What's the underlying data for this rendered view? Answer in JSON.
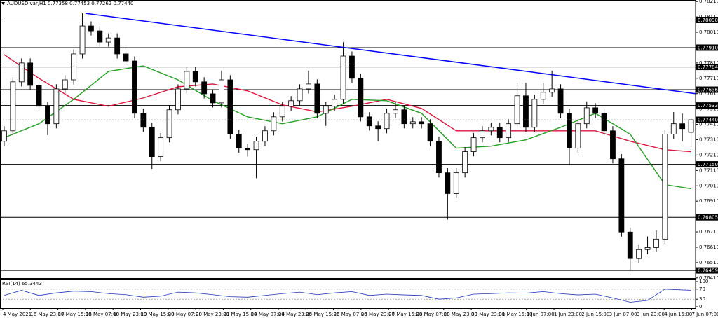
{
  "chart_data": {
    "type": "candlestick",
    "title": "AUDUSD.var,H1  0.77358 0.77453 0.77262 0.77440",
    "xlim": [
      -0.48,
      79.52
    ],
    "ylim": [
      0.764,
      0.7822
    ],
    "up_color": "#ffffff",
    "down_color": "#000000",
    "candles": {
      "open": [
        0.773,
        0.77368,
        0.77687,
        0.7781,
        0.77664,
        0.77528,
        0.77414,
        0.77641,
        0.777,
        0.77869,
        0.78051,
        0.78019,
        0.77946,
        0.77973,
        0.77869,
        0.77823,
        0.77482,
        0.77391,
        0.772,
        0.77323,
        0.77505,
        0.77641,
        0.77755,
        0.77687,
        0.77609,
        0.7755,
        0.777,
        0.77346,
        0.77255,
        0.77245,
        0.773,
        0.77368,
        0.77459,
        0.77528,
        0.77564,
        0.77641,
        0.77673,
        0.77482,
        0.77528,
        0.77573,
        0.77855,
        0.7771,
        0.77459,
        0.774,
        0.77382,
        0.77482,
        0.77505,
        0.77414,
        0.77427,
        0.77414,
        0.773,
        0.77095,
        0.76959,
        0.77095,
        0.77232,
        0.77323,
        0.77368,
        0.77391,
        0.77323,
        0.77414,
        0.77596,
        0.77391,
        0.77573,
        0.77619,
        0.77641,
        0.77482,
        0.77255,
        0.77414,
        0.77518,
        0.77482,
        0.77368,
        0.77186,
        0.76709,
        0.76536,
        0.76595,
        0.76608,
        0.76663,
        0.77346,
        0.77414,
        0.77358
      ],
      "high": [
        0.77398,
        0.77717,
        0.7784,
        0.7784,
        0.77694,
        0.77558,
        0.77671,
        0.7773,
        0.77899,
        0.78133,
        0.78081,
        0.78049,
        0.78003,
        0.78003,
        0.77899,
        0.77853,
        0.77512,
        0.77421,
        0.77353,
        0.77535,
        0.77671,
        0.77785,
        0.77785,
        0.77717,
        0.77639,
        0.7776,
        0.7773,
        0.77376,
        0.77285,
        0.7733,
        0.77398,
        0.77489,
        0.77558,
        0.77594,
        0.77671,
        0.7776,
        0.77703,
        0.77558,
        0.77603,
        0.77945,
        0.77885,
        0.7774,
        0.77489,
        0.7743,
        0.77512,
        0.7756,
        0.77535,
        0.77457,
        0.77457,
        0.77444,
        0.7733,
        0.77125,
        0.77125,
        0.77262,
        0.77353,
        0.77398,
        0.77421,
        0.77421,
        0.77444,
        0.7768,
        0.7768,
        0.77603,
        0.7768,
        0.7776,
        0.77671,
        0.77512,
        0.77444,
        0.7756,
        0.77548,
        0.77512,
        0.77398,
        0.77216,
        0.76739,
        0.76625,
        0.7668,
        0.7672,
        0.77376,
        0.7749,
        0.7748,
        0.77453
      ],
      "low": [
        0.7727,
        0.77338,
        0.77657,
        0.77634,
        0.77498,
        0.7734,
        0.77384,
        0.77611,
        0.7767,
        0.77839,
        0.77989,
        0.77916,
        0.77916,
        0.77839,
        0.77793,
        0.77452,
        0.77361,
        0.7712,
        0.7717,
        0.77293,
        0.77475,
        0.77611,
        0.77657,
        0.77579,
        0.7752,
        0.7752,
        0.77316,
        0.77225,
        0.772,
        0.7706,
        0.7727,
        0.77338,
        0.77429,
        0.77498,
        0.77534,
        0.77611,
        0.77452,
        0.774,
        0.77498,
        0.77543,
        0.7768,
        0.77429,
        0.7737,
        0.773,
        0.77352,
        0.77452,
        0.77384,
        0.77384,
        0.77384,
        0.7727,
        0.77065,
        0.7679,
        0.76929,
        0.77065,
        0.77202,
        0.77293,
        0.77338,
        0.77293,
        0.77293,
        0.77384,
        0.77361,
        0.77361,
        0.77543,
        0.77589,
        0.77452,
        0.7715,
        0.77225,
        0.77384,
        0.77452,
        0.77338,
        0.77156,
        0.76679,
        0.76459,
        0.76506,
        0.76565,
        0.76578,
        0.76633,
        0.77316,
        0.773,
        0.77262
      ],
      "close": [
        0.77368,
        0.77687,
        0.7781,
        0.77664,
        0.77528,
        0.77414,
        0.77641,
        0.777,
        0.77869,
        0.78051,
        0.78019,
        0.77946,
        0.77973,
        0.77869,
        0.77823,
        0.77482,
        0.77391,
        0.772,
        0.77323,
        0.77505,
        0.77641,
        0.77755,
        0.77687,
        0.77609,
        0.7755,
        0.777,
        0.77346,
        0.77255,
        0.77245,
        0.773,
        0.77368,
        0.77459,
        0.77528,
        0.77564,
        0.77641,
        0.77673,
        0.77482,
        0.77528,
        0.77573,
        0.77855,
        0.7771,
        0.77459,
        0.774,
        0.77382,
        0.77482,
        0.77505,
        0.77414,
        0.77427,
        0.77414,
        0.773,
        0.77095,
        0.76959,
        0.77095,
        0.77232,
        0.77323,
        0.77368,
        0.77391,
        0.77323,
        0.77414,
        0.77596,
        0.77391,
        0.77573,
        0.77619,
        0.77641,
        0.77482,
        0.77255,
        0.77414,
        0.77518,
        0.77482,
        0.77368,
        0.77186,
        0.76709,
        0.76536,
        0.76595,
        0.76608,
        0.76663,
        0.77346,
        0.77414,
        0.77382,
        0.7744
      ]
    },
    "indicators": [
      {
        "color": "#dc143c",
        "x": [
          0,
          4,
          8,
          12,
          16,
          20,
          24,
          28,
          32,
          36,
          40,
          44,
          48,
          52,
          56,
          60,
          64,
          68,
          72,
          76,
          79
        ],
        "values": [
          0.77864,
          0.7771,
          0.77573,
          0.77528,
          0.77582,
          0.77655,
          0.77673,
          0.77628,
          0.77537,
          0.77491,
          0.77528,
          0.77573,
          0.77514,
          0.77368,
          0.77368,
          0.77368,
          0.77368,
          0.77368,
          0.773,
          0.77245,
          0.77232
        ]
      },
      {
        "color": "#22a022",
        "x": [
          0,
          4,
          8,
          12,
          16,
          20,
          24,
          28,
          32,
          36,
          40,
          44,
          48,
          52,
          56,
          60,
          64,
          68,
          72,
          76,
          79
        ],
        "values": [
          0.77323,
          0.77414,
          0.77573,
          0.77755,
          0.77791,
          0.777,
          0.77564,
          0.77459,
          0.77414,
          0.77459,
          0.77573,
          0.77564,
          0.77482,
          0.77255,
          0.77268,
          0.77309,
          0.77391,
          0.77482,
          0.77346,
          0.77018,
          0.76991
        ]
      }
    ],
    "trendline": {
      "color": "#0000ff",
      "x": [
        9.35,
        79.52
      ],
      "values": [
        0.78133,
        0.7761
      ]
    },
    "levels": [
      {
        "value": 0.7809,
        "label": "0.78090"
      },
      {
        "value": 0.7791,
        "label": "0.77910"
      },
      {
        "value": 0.77784,
        "label": "0.77784"
      },
      {
        "value": 0.77636,
        "label": "0.77636"
      },
      {
        "value": 0.77533,
        "label": "0.77533"
      },
      {
        "value": 0.7715,
        "label": "0.77150"
      },
      {
        "value": 0.76805,
        "label": "0.76805"
      },
      {
        "value": 0.76459,
        "label": "0.76459"
      }
    ],
    "last_price": {
      "value": 0.7744,
      "label": "0.77440"
    },
    "yticks": [
      {
        "value": 0.7821,
        "label": "0.78210"
      },
      {
        "value": 0.7811,
        "label": "0.78110"
      },
      {
        "value": 0.7801,
        "label": "0.78010"
      },
      {
        "value": 0.7781,
        "label": "0.77810"
      },
      {
        "value": 0.7771,
        "label": "0.77710"
      },
      {
        "value": 0.7761,
        "label": "0.77610"
      },
      {
        "value": 0.7751,
        "label": "0.77510"
      },
      {
        "value": 0.7741,
        "label": "0.77410"
      },
      {
        "value": 0.7731,
        "label": "0.77310"
      },
      {
        "value": 0.7721,
        "label": "0.77210"
      },
      {
        "value": 0.7711,
        "label": "0.77110"
      },
      {
        "value": 0.7701,
        "label": "0.77010"
      },
      {
        "value": 0.7691,
        "label": "0.76910"
      },
      {
        "value": 0.7681,
        "label": "0.76810"
      },
      {
        "value": 0.7671,
        "label": "0.76710"
      },
      {
        "value": 0.7661,
        "label": "0.76610"
      },
      {
        "value": 0.7651,
        "label": "0.76510"
      },
      {
        "value": 0.7641,
        "label": "0.76410"
      }
    ],
    "x_labels": [
      "4 May 2021",
      "16 May 23:00",
      "17 May 15:00",
      "18 May 07:00",
      "18 May 23:00",
      "19 May 15:00",
      "20 May 07:00",
      "20 May 23:00",
      "21 May 15:00",
      "24 May 07:00",
      "24 May 23:00",
      "25 May 15:00",
      "26 May 07:00",
      "26 May 23:00",
      "27 May 15:00",
      "28 May 07:00",
      "28 May 23:00",
      "30 May 23:00",
      "31 May 15:00",
      "1 Jun 07:00",
      "1 Jun 23:00",
      "2 Jun 15:00",
      "3 Jun 07:00",
      "3 Jun 23:00",
      "4 Jun 15:00",
      "7 Jun 07:00"
    ],
    "rsi": {
      "title": "RSI(14) 65.3443",
      "color": "#1f35b8",
      "ylim": [
        0,
        100
      ],
      "yticks": [
        100,
        70,
        30,
        0
      ],
      "dashed_levels": [
        70,
        30
      ],
      "x": [
        0,
        2,
        4,
        6,
        8,
        10,
        12,
        14,
        16,
        18,
        20,
        22,
        24,
        26,
        28,
        30,
        32,
        34,
        36,
        38,
        40,
        42,
        44,
        46,
        48,
        50,
        52,
        54,
        56,
        58,
        60,
        62,
        64,
        66,
        68,
        70,
        72,
        74,
        76,
        79
      ],
      "values": [
        45,
        65,
        45,
        55,
        62,
        60,
        52,
        48,
        38,
        42,
        58,
        55,
        48,
        40,
        38,
        45,
        52,
        58,
        48,
        55,
        60,
        45,
        50,
        47,
        45,
        30,
        35,
        50,
        52,
        55,
        54,
        60,
        52,
        47,
        50,
        35,
        18,
        25,
        70,
        65.3443
      ]
    }
  }
}
